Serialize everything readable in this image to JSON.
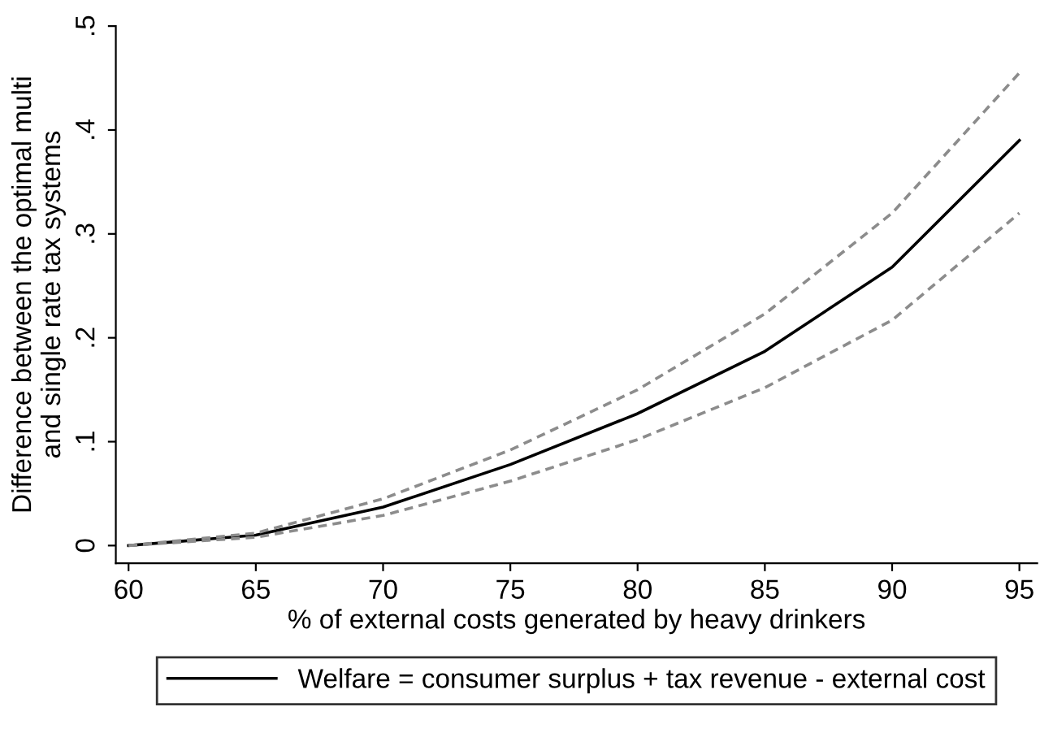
{
  "chart_data": {
    "type": "line",
    "xlabel": "% of external costs generated by heavy drinkers",
    "ylabel": "Difference between the optimal multi\nand single rate tax systems",
    "x": [
      60,
      65,
      70,
      75,
      80,
      85,
      90,
      95
    ],
    "series": [
      {
        "name": "Welfare = consumer surplus + tax revenue - external cost",
        "color": "#000000",
        "line_style": "solid",
        "values": [
          0,
          0.01,
          0.037,
          0.078,
          0.127,
          0.187,
          0.268,
          0.39
        ]
      },
      {
        "color": "#8c8c8c",
        "line_style": "dashed",
        "values": [
          0,
          0.012,
          0.045,
          0.092,
          0.15,
          0.223,
          0.32,
          0.455
        ]
      },
      {
        "color": "#8c8c8c",
        "line_style": "dashed",
        "values": [
          0,
          0.008,
          0.029,
          0.062,
          0.102,
          0.152,
          0.217,
          0.32
        ]
      }
    ],
    "xlim": [
      59.5,
      95.7
    ],
    "xticks": [
      60,
      65,
      70,
      75,
      80,
      85,
      90,
      95
    ],
    "ylim": [
      -0.017,
      0.5
    ],
    "yticks": [
      0,
      {
        "value": 0.1,
        "label": ".1"
      },
      {
        "value": 0.2,
        "label": ".2"
      },
      {
        "value": 0.3,
        "label": ".3"
      },
      {
        "value": 0.4,
        "label": ".4"
      },
      {
        "value": 0.5,
        "label": ".5"
      }
    ],
    "grid": false,
    "legend": "bottom",
    "marker": "none"
  }
}
